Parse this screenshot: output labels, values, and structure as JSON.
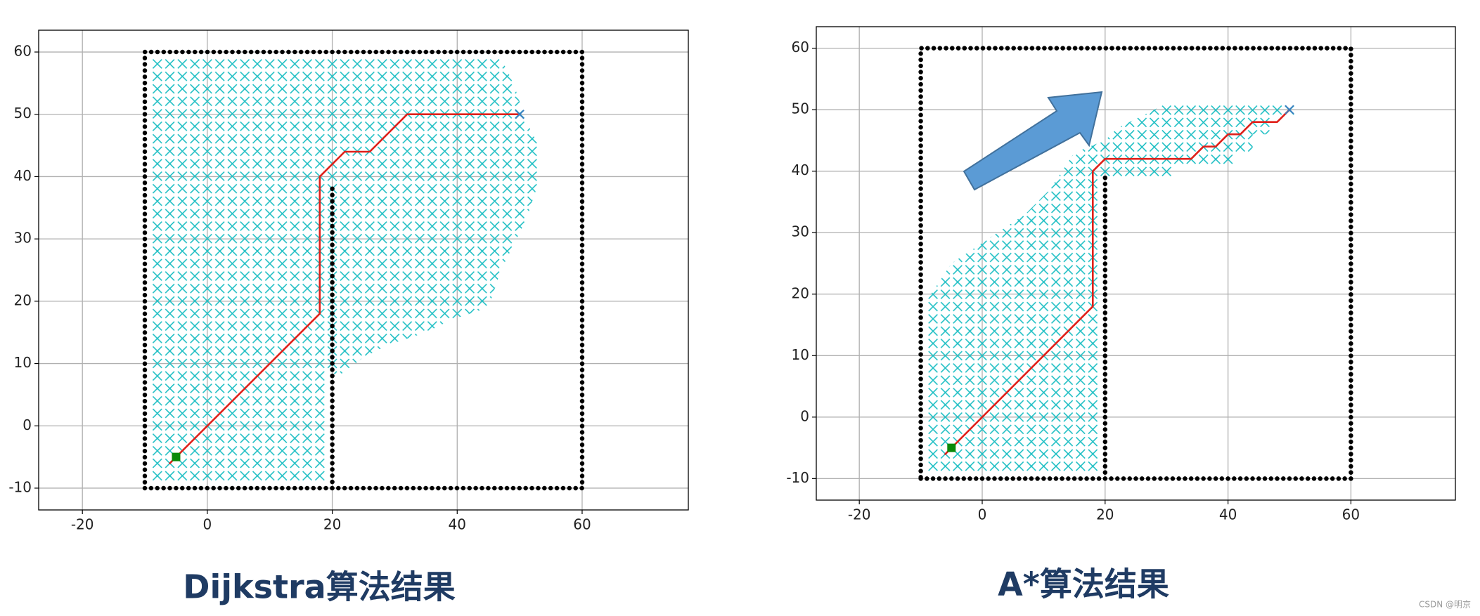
{
  "chart_data": [
    {
      "type": "scatter",
      "title": "Dijkstra算法结果",
      "xlim": [
        -27,
        77
      ],
      "ylim": [
        -13.5,
        63.5
      ],
      "xticks": [
        -20,
        0,
        20,
        40,
        60
      ],
      "yticks": [
        -10,
        0,
        10,
        20,
        30,
        40,
        50,
        60
      ],
      "grid": true,
      "series": [
        {
          "type": "area",
          "hatch": "x",
          "color": "#1fbfc4",
          "x": [
            -9,
            19,
            19,
            21,
            25,
            29,
            35,
            39,
            45,
            47,
            49,
            51,
            53,
            53,
            51,
            49,
            47,
            -9
          ],
          "y": [
            -9,
            -9,
            9,
            8,
            11,
            13,
            15,
            17,
            19,
            25,
            29,
            33,
            39,
            45,
            49,
            55,
            59,
            59
          ]
        },
        {
          "type": "line",
          "linestyle": "dotted",
          "color": "#000000",
          "x": [
            -10,
            60,
            60,
            -10,
            -10,
            null,
            20,
            20
          ],
          "y": [
            -10,
            -10,
            60,
            60,
            -10,
            null,
            -10,
            39
          ]
        },
        {
          "type": "line",
          "linestyle": "solid",
          "color": "#e0201a",
          "x": [
            -6,
            18,
            18,
            22,
            26,
            32,
            50
          ],
          "y": [
            -6,
            18,
            40,
            44,
            44,
            50,
            50
          ]
        },
        {
          "type": "scatter",
          "marker": "square",
          "color": "#0a8a0a",
          "x": [
            -5
          ],
          "y": [
            -5
          ]
        },
        {
          "type": "scatter",
          "marker": "x",
          "color": "#3a7fc0",
          "x": [
            50
          ],
          "y": [
            50
          ]
        }
      ]
    },
    {
      "type": "scatter",
      "title": "A*算法结果",
      "xlim": [
        -27,
        77
      ],
      "ylim": [
        -13.5,
        63.5
      ],
      "xticks": [
        -20,
        0,
        20,
        40,
        60
      ],
      "yticks": [
        -10,
        0,
        10,
        20,
        30,
        40,
        50,
        60
      ],
      "grid": true,
      "series": [
        {
          "type": "area",
          "hatch": "x",
          "color": "#1fbfc4",
          "x": [
            -9,
            19,
            19,
            31,
            31,
            41,
            41,
            44,
            44,
            47,
            47,
            51,
            51,
            30,
            26,
            22,
            20,
            15,
            11,
            7,
            1,
            -5,
            -9
          ],
          "y": [
            -9,
            -9,
            39,
            39,
            41,
            41,
            43,
            43,
            46,
            46,
            49,
            49,
            51,
            51,
            49,
            47,
            45,
            43,
            37,
            33,
            29,
            25,
            19
          ]
        },
        {
          "type": "line",
          "linestyle": "dotted",
          "color": "#000000",
          "x": [
            -10,
            60,
            60,
            -10,
            -10,
            null,
            20,
            20
          ],
          "y": [
            -10,
            -10,
            60,
            60,
            -10,
            null,
            -10,
            39
          ]
        },
        {
          "type": "line",
          "linestyle": "solid",
          "color": "#e0201a",
          "x": [
            -6,
            18,
            18,
            20,
            34,
            36,
            38,
            40,
            42,
            44,
            48,
            50
          ],
          "y": [
            -6,
            18,
            40,
            42,
            42,
            44,
            44,
            46,
            46,
            48,
            48,
            50
          ]
        },
        {
          "type": "scatter",
          "marker": "square",
          "color": "#0a8a0a",
          "x": [
            -5
          ],
          "y": [
            -5
          ]
        },
        {
          "type": "scatter",
          "marker": "x",
          "color": "#3a7fc0",
          "x": [
            50
          ],
          "y": [
            50
          ]
        }
      ]
    }
  ],
  "watermark": "CSDN @明京"
}
